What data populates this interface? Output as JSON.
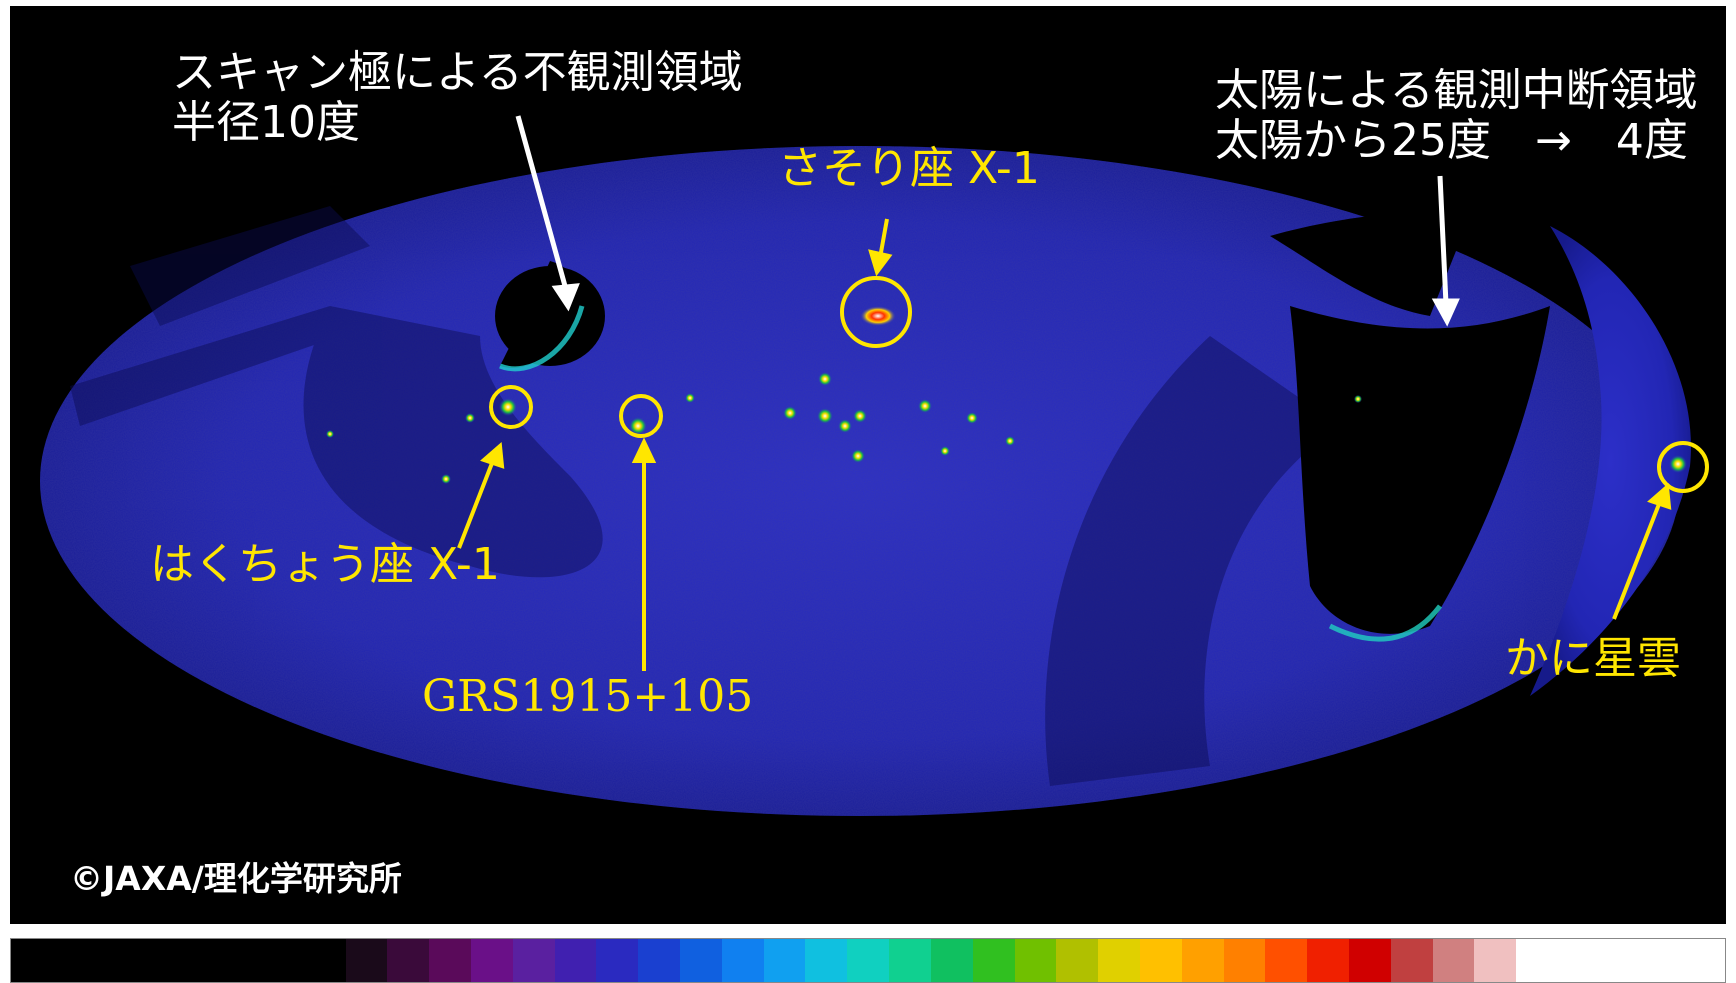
{
  "labels": {
    "scan_pole_line1": "スキャン極による不観測領域",
    "scan_pole_line2": "半径10度",
    "sun_line1": "太陽による観測中断領域",
    "sun_line2": "太陽から25度　→　4度",
    "sco_x1": "さそり座 X-1",
    "cyg_x1": "はくちょう座 X-1",
    "grs": "GRS1915+105",
    "crab": "かに星雲",
    "copyright": "©JAXA/理化学研究所"
  },
  "colors": {
    "background": "#000000",
    "sky_base": "#1a1fae",
    "annotation_white": "#ffffff",
    "annotation_yellow": "#ffe600"
  },
  "colorbar": {
    "colors": [
      "#000000",
      "#000000",
      "#000000",
      "#000000",
      "#000000",
      "#000000",
      "#000000",
      "#000000",
      "#1a0a1a",
      "#3a0a3a",
      "#5a0a5a",
      "#6a1088",
      "#5a20a0",
      "#4020b0",
      "#2a2ac0",
      "#1a40d0",
      "#1060e0",
      "#1080f0",
      "#10a0f0",
      "#10c0e0",
      "#10d0c0",
      "#10d090",
      "#10c060",
      "#30c020",
      "#70c000",
      "#b0c000",
      "#e0d000",
      "#ffc000",
      "#ffa000",
      "#ff8000",
      "#ff5000",
      "#f02000",
      "#d00000",
      "#c04040",
      "#d08080",
      "#f0c0c0",
      "#ffffff",
      "#ffffff",
      "#ffffff",
      "#ffffff",
      "#ffffff"
    ]
  }
}
